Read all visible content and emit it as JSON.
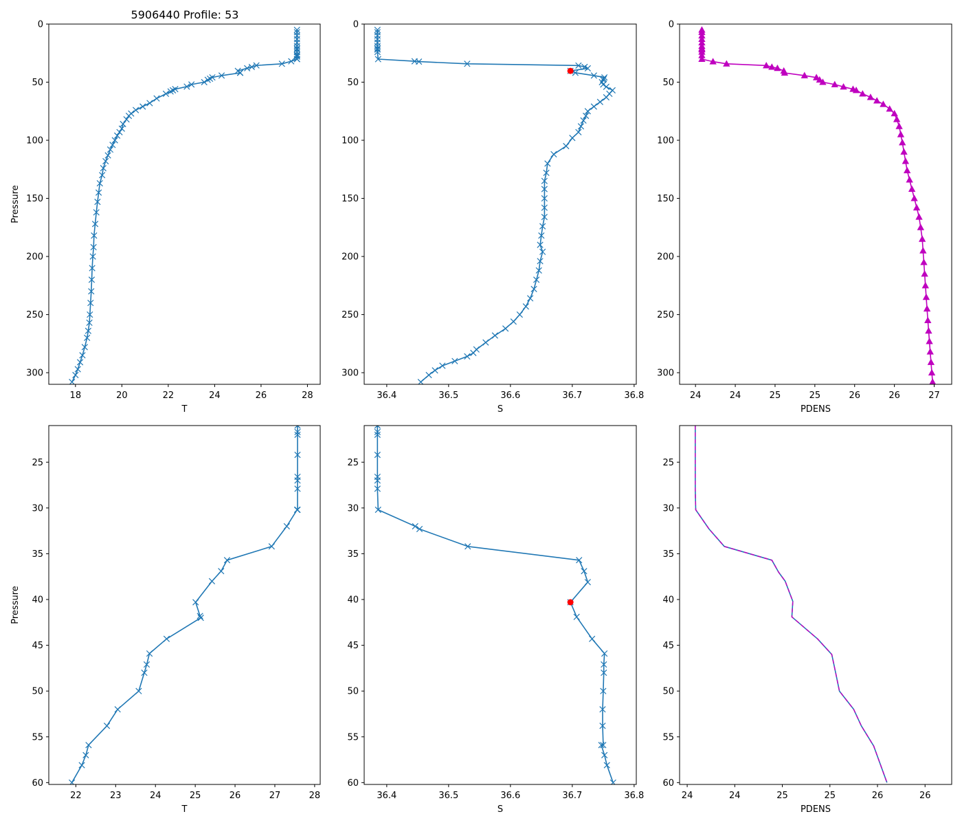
{
  "figure": {
    "title": "5906440 Profile: 53"
  },
  "chart_data": [
    {
      "id": "temp_full",
      "type": "line",
      "xlabel": "T",
      "ylabel": "Pressure",
      "title": "5906440 Profile: 53",
      "xlim": [
        16.85,
        28.55
      ],
      "ylim": [
        310,
        0
      ],
      "xticks": [
        18,
        20,
        22,
        24,
        26,
        28
      ],
      "yticks": [
        0,
        50,
        100,
        150,
        200,
        250,
        300
      ],
      "marker": "x",
      "color": "#1f77b4",
      "series": [
        {
          "name": "T",
          "x": [
            27.55,
            27.55,
            27.55,
            27.55,
            27.55,
            27.55,
            27.55,
            27.55,
            27.55,
            27.55,
            27.55,
            27.55,
            27.55,
            27.55,
            27.3,
            26.9,
            25.8,
            25.6,
            25.4,
            25.0,
            25.1,
            25.1,
            24.3,
            23.9,
            23.8,
            23.7,
            23.55,
            23.0,
            22.8,
            22.3,
            22.2,
            22.1,
            21.9,
            21.5,
            21.2,
            20.9,
            20.6,
            20.4,
            20.3,
            20.2,
            20.05,
            20.0,
            19.9,
            19.8,
            19.7,
            19.6,
            19.5,
            19.4,
            19.3,
            19.2,
            19.15,
            19.05,
            19.0,
            18.95,
            18.9,
            18.85,
            18.8,
            18.78,
            18.75,
            18.72,
            18.7,
            18.68,
            18.65,
            18.62,
            18.6,
            18.55,
            18.5,
            18.4,
            18.3,
            18.2,
            18.1,
            18.0,
            17.85
          ],
          "y": [
            5,
            7,
            10,
            13,
            16,
            19,
            21,
            22,
            24,
            26.5,
            27,
            28,
            30,
            30.2,
            32,
            34.2,
            35.6,
            36.9,
            38,
            40.3,
            41.8,
            42,
            44.3,
            45.9,
            47,
            48,
            50,
            52,
            53.8,
            56,
            57,
            58,
            60,
            64,
            68,
            71,
            74,
            77,
            79,
            82,
            86,
            90,
            93,
            96,
            100,
            104,
            108,
            113,
            118,
            124,
            130,
            137,
            145,
            153,
            162,
            172,
            182,
            192,
            200,
            210,
            220,
            230,
            240,
            250,
            257,
            264,
            270,
            278,
            285,
            291,
            297,
            302,
            308
          ]
        }
      ]
    },
    {
      "id": "sal_full",
      "type": "line",
      "xlabel": "S",
      "ylabel": "",
      "xlim": [
        36.3635,
        36.8035
      ],
      "ylim": [
        310,
        0
      ],
      "xticks": [
        36.4,
        36.5,
        36.6,
        36.7,
        36.8
      ],
      "yticks": [
        0,
        50,
        100,
        150,
        200,
        250,
        300
      ],
      "marker": "x",
      "color": "#1f77b4",
      "highlight": {
        "x": 36.697,
        "y": 40.3,
        "color": "#ff0000"
      },
      "series": [
        {
          "name": "S",
          "x": [
            36.385,
            36.385,
            36.385,
            36.385,
            36.385,
            36.385,
            36.385,
            36.385,
            36.385,
            36.386,
            36.445,
            36.452,
            36.53,
            36.71,
            36.72,
            36.725,
            36.697,
            36.705,
            36.735,
            36.752,
            36.751,
            36.75,
            36.748,
            36.75,
            36.755,
            36.765,
            36.76,
            36.755,
            36.745,
            36.735,
            36.725,
            36.722,
            36.718,
            36.714,
            36.71,
            36.7,
            36.69,
            36.67,
            36.66,
            36.658,
            36.655,
            36.655,
            36.655,
            36.655,
            36.655,
            36.652,
            36.65,
            36.648,
            36.652,
            36.648,
            36.646,
            36.642,
            36.638,
            36.632,
            36.625,
            36.615,
            36.605,
            36.592,
            36.575,
            36.56,
            36.545,
            36.54,
            36.53,
            36.51,
            36.49,
            36.478,
            36.468,
            36.455
          ],
          "y": [
            5,
            7,
            10,
            13,
            16,
            19,
            21,
            22,
            24,
            30.2,
            32,
            32.3,
            34.2,
            35.7,
            36.9,
            38.1,
            40.3,
            41.9,
            44.3,
            45.9,
            47.1,
            48,
            50,
            52,
            54,
            57,
            60,
            63,
            67,
            71,
            75,
            79,
            83,
            88,
            93,
            98,
            105,
            112,
            120,
            128,
            135,
            142,
            150,
            158,
            166,
            174,
            182,
            190,
            196,
            204,
            212,
            220,
            228,
            236,
            243,
            250,
            256,
            262,
            268,
            274,
            280,
            283,
            286,
            290,
            294,
            298,
            302,
            308
          ]
        }
      ]
    },
    {
      "id": "pdens_full",
      "type": "line",
      "xlabel": "PDENS",
      "ylabel": "",
      "xlim": [
        23.3,
        26.72
      ],
      "ylim": [
        310,
        0
      ],
      "xticks": [
        23.5,
        24.0,
        24.5,
        25.0,
        25.5,
        26.0,
        26.5
      ],
      "yticks": [
        0,
        50,
        100,
        150,
        200,
        250,
        300
      ],
      "marker": "^",
      "color": "#bf00bf",
      "series": [
        {
          "name": "PDENS",
          "x": [
            23.58,
            23.58,
            23.58,
            23.58,
            23.58,
            23.58,
            23.58,
            23.58,
            23.58,
            23.58,
            23.58,
            23.72,
            23.89,
            24.39,
            24.46,
            24.53,
            24.61,
            24.62,
            24.87,
            25.02,
            25.06,
            25.1,
            25.25,
            25.36,
            25.48,
            25.52,
            25.6,
            25.7,
            25.78,
            25.86,
            25.94,
            26.0,
            26.03,
            26.06,
            26.08,
            26.1,
            26.12,
            26.14,
            26.16,
            26.19,
            26.22,
            26.25,
            26.28,
            26.31,
            26.33,
            26.35,
            26.36,
            26.37,
            26.38,
            26.39,
            26.4,
            26.41,
            26.42,
            26.43,
            26.44,
            26.45,
            26.46,
            26.47,
            26.48
          ],
          "y": [
            5,
            7,
            10,
            13,
            16,
            19,
            21,
            22,
            24,
            27,
            30.2,
            32.3,
            34.2,
            35.7,
            37,
            38,
            40.3,
            42,
            44.3,
            46,
            48,
            50,
            52,
            54,
            56,
            57,
            60,
            63,
            66,
            69,
            73,
            77,
            82,
            88,
            95,
            102,
            110,
            118,
            126,
            134,
            142,
            150,
            158,
            166,
            175,
            185,
            195,
            205,
            215,
            225,
            235,
            245,
            255,
            264,
            273,
            282,
            291,
            300,
            308
          ]
        }
      ]
    },
    {
      "id": "temp_zoom",
      "type": "line",
      "xlabel": "T",
      "ylabel": "Pressure",
      "xlim": [
        21.32,
        28.14
      ],
      "ylim": [
        60.2,
        21
      ],
      "xticks": [
        22,
        23,
        24,
        25,
        26,
        27,
        28
      ],
      "yticks": [
        25,
        30,
        35,
        40,
        45,
        50,
        55,
        60
      ],
      "marker": "x",
      "color": "#1f77b4",
      "series": [
        {
          "name": "T",
          "x": [
            27.57,
            27.57,
            27.57,
            27.57,
            27.57,
            27.57,
            27.57,
            27.57,
            27.56,
            27.3,
            26.92,
            25.8,
            25.65,
            25.42,
            25.01,
            25.12,
            25.14,
            24.28,
            23.85,
            23.78,
            23.72,
            23.58,
            23.05,
            22.78,
            22.32,
            22.25,
            22.15,
            21.9
          ],
          "y": [
            21,
            21.7,
            22,
            24.2,
            26.6,
            27,
            27.9,
            30.2,
            30.2,
            32,
            34.2,
            35.7,
            36.9,
            38,
            40.3,
            41.8,
            42,
            44.3,
            45.9,
            47.1,
            48,
            50,
            52,
            53.8,
            55.9,
            57,
            58.1,
            60
          ]
        }
      ]
    },
    {
      "id": "sal_zoom",
      "type": "line",
      "xlabel": "S",
      "ylabel": "",
      "xlim": [
        36.3635,
        36.8035
      ],
      "ylim": [
        60.2,
        21
      ],
      "xticks": [
        36.4,
        36.5,
        36.6,
        36.7,
        36.8
      ],
      "yticks": [
        25,
        30,
        35,
        40,
        45,
        50,
        55,
        60
      ],
      "marker": "x",
      "color": "#1f77b4",
      "highlight": {
        "x": 36.697,
        "y": 40.3,
        "color": "#ff0000"
      },
      "series": [
        {
          "name": "S",
          "x": [
            36.385,
            36.385,
            36.385,
            36.385,
            36.385,
            36.385,
            36.385,
            36.386,
            36.446,
            36.453,
            36.531,
            36.711,
            36.719,
            36.725,
            36.697,
            36.707,
            36.732,
            36.752,
            36.751,
            36.751,
            36.75,
            36.749,
            36.749,
            36.75,
            36.747,
            36.752,
            36.756,
            36.766
          ],
          "y": [
            21,
            21.7,
            22,
            24.2,
            26.6,
            27,
            27.9,
            30.2,
            32,
            32.3,
            34.2,
            35.7,
            36.9,
            38.1,
            40.3,
            41.9,
            44.3,
            45.9,
            47.1,
            48,
            50,
            52,
            53.8,
            55.9,
            55.9,
            57,
            58.1,
            60
          ]
        }
      ]
    },
    {
      "id": "pdens_zoom",
      "type": "line",
      "xlabel": "PDENS",
      "ylabel": "",
      "xlim": [
        23.42,
        26.28
      ],
      "ylim": [
        60.2,
        21
      ],
      "xticks": [
        23.5,
        24.0,
        24.5,
        25.0,
        25.5,
        26.0
      ],
      "yticks": [
        25,
        30,
        35,
        40,
        45,
        50,
        55,
        60
      ],
      "marker": "none",
      "color": "#1f77b4",
      "overlay_color": "#bf00bf",
      "overlay_style": "dashed",
      "series": [
        {
          "name": "PDENS",
          "x": [
            23.585,
            23.585,
            23.585,
            23.59,
            23.73,
            23.89,
            24.39,
            24.46,
            24.53,
            24.61,
            24.6,
            24.87,
            25.02,
            25.06,
            25.1,
            25.25,
            25.33,
            25.46,
            25.6
          ],
          "y": [
            21,
            25,
            28,
            30.2,
            32.3,
            34.2,
            35.7,
            37,
            38,
            40.2,
            41.9,
            44.3,
            46,
            48,
            50,
            52,
            53.8,
            56,
            60
          ]
        }
      ]
    }
  ]
}
